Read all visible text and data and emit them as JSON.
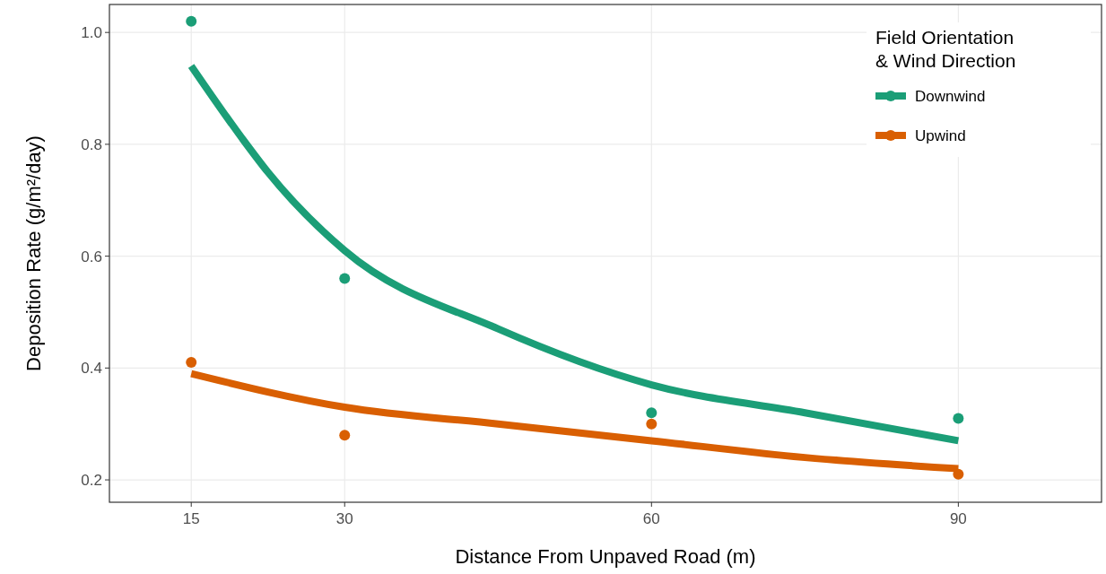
{
  "chart_data": {
    "type": "scatter",
    "xlabel": "Distance From Unpaved Road (m)",
    "ylabel": "Deposition Rate (g/m²/day)",
    "legend_title": "Field Orientation\n& Wind Direction",
    "legend": "top right",
    "grid": true,
    "marker": "circle",
    "xlim": [
      7,
      104
    ],
    "xticks": [
      15,
      30,
      60,
      90
    ],
    "ylim": [
      0.16,
      1.05
    ],
    "yticks": [
      {
        "value": 0.2,
        "label": "0.2"
      },
      {
        "value": 0.4,
        "label": "0.4"
      },
      {
        "value": 0.6,
        "label": "0.6"
      },
      {
        "value": 0.8,
        "label": "0.8"
      },
      {
        "value": 1.0,
        "label": "1.0"
      }
    ],
    "series": [
      {
        "type": "line",
        "marker": "none",
        "name": "Downwind",
        "color": "#1b9e77",
        "x": [
          15,
          20,
          22.5,
          30,
          45,
          60,
          75,
          90
        ],
        "values": [
          0.94,
          0.81,
          0.75,
          0.61,
          0.47,
          0.37,
          0.32,
          0.27
        ]
      },
      {
        "type": "line",
        "marker": "none",
        "name": "Upwind",
        "color": "#d95f02",
        "x": [
          15,
          30,
          45,
          60,
          75,
          90
        ],
        "values": [
          0.39,
          0.33,
          0.3,
          0.27,
          0.24,
          0.22
        ]
      },
      {
        "color": "#1b9e77",
        "x": [
          15,
          30,
          60,
          90
        ],
        "values": [
          1.02,
          0.56,
          0.32,
          0.31
        ]
      },
      {
        "color": "#d95f02",
        "x": [
          15,
          30,
          60,
          90
        ],
        "values": [
          0.41,
          0.28,
          0.3,
          0.21
        ]
      }
    ]
  }
}
